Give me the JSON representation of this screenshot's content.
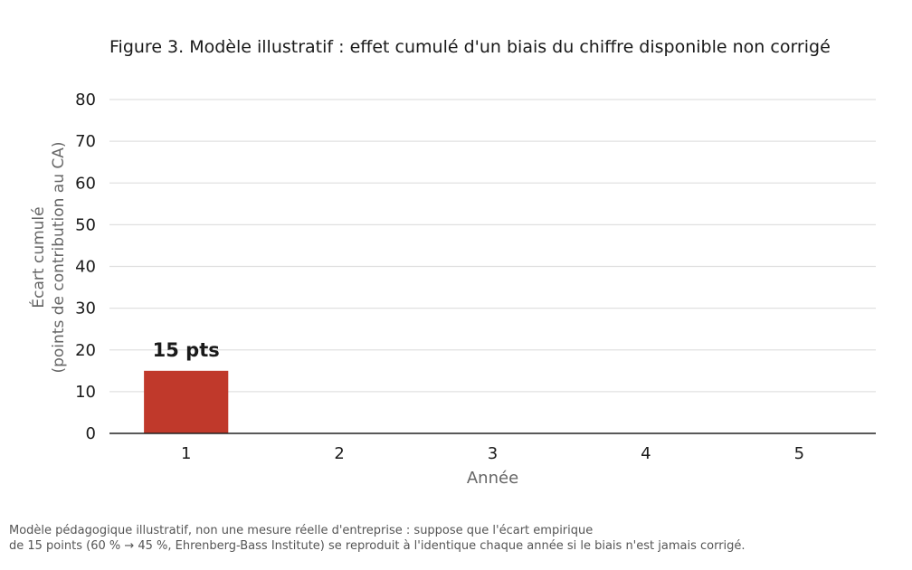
{
  "title": "Figure 3. Modèle illustratif : effet cumulé d'un biais du chiffre disponible non corrigé",
  "caption": {
    "line1": "Modèle pédagogique illustratif, non une mesure réelle d'entreprise : suppose que l'écart empirique",
    "line2": "de 15 points (60 % → 45 %, Ehrenberg-Bass Institute) se reproduit à l'identique chaque année si le biais n'est jamais corrigé."
  },
  "colors": {
    "bar": "#c0392b",
    "grid": "#e0e0e0",
    "axis": "#222222",
    "label": "#666666"
  },
  "chart_data": {
    "type": "bar",
    "categories": [
      "1",
      "2",
      "3",
      "4",
      "5"
    ],
    "values": [
      15,
      0,
      0,
      0,
      0
    ],
    "data_labels": [
      "15 pts",
      "",
      "",
      "",
      ""
    ],
    "xlabel": "Année",
    "ylabel_lines": [
      "Écart cumulé",
      "(points de contribution au CA)"
    ],
    "ylim": [
      0,
      80
    ],
    "yticks": [
      0,
      10,
      20,
      30,
      40,
      50,
      60,
      70,
      80
    ],
    "grid": true
  }
}
